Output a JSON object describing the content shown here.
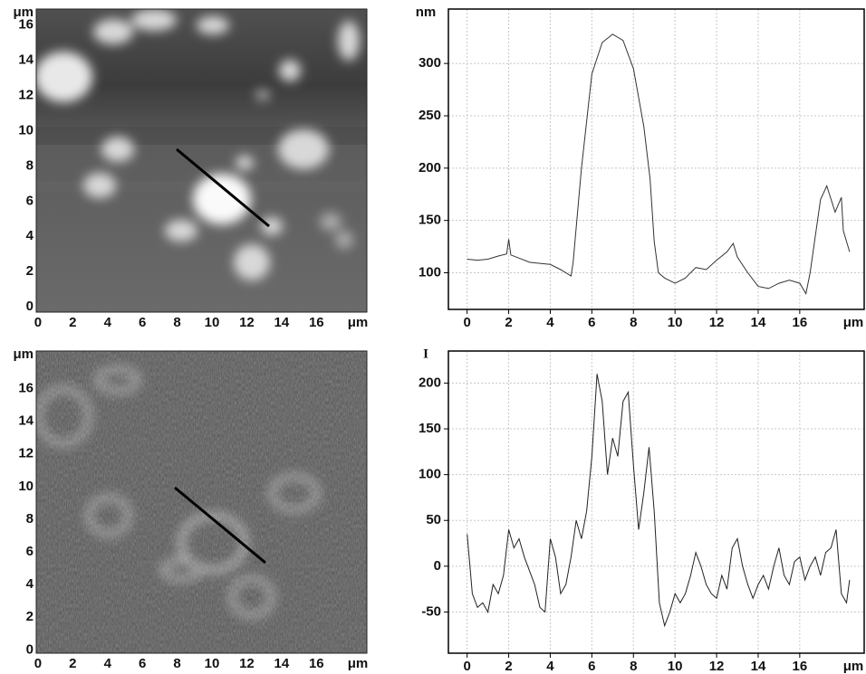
{
  "chart_data": [
    {
      "type": "image",
      "xlim": [
        -0.1,
        18.9
      ],
      "ylim": [
        -0.3,
        16.9
      ],
      "xticks": [
        0,
        2,
        4,
        6,
        8,
        10,
        12,
        14,
        16
      ],
      "yticks": [
        0,
        2,
        4,
        6,
        8,
        10,
        12,
        14,
        16
      ],
      "x_unit": "μm",
      "y_unit": "μm"
    },
    {
      "type": "line",
      "y_label": "nm",
      "x_unit": "μm",
      "color": "#333333",
      "grid": true,
      "xlim": [
        -0.9,
        19.1
      ],
      "ylim": [
        65,
        352
      ],
      "xticks": [
        0,
        2,
        4,
        6,
        8,
        10,
        12,
        14,
        16
      ],
      "yticks": [
        100,
        150,
        200,
        250,
        300
      ],
      "x": [
        0,
        0.5,
        1,
        1.5,
        1.9,
        2,
        2.1,
        2.5,
        3,
        3.5,
        4,
        4.5,
        5,
        5.1,
        5.5,
        6,
        6.5,
        7,
        7.5,
        8,
        8.5,
        8.8,
        9,
        9.2,
        9.5,
        10,
        10.5,
        11,
        11.5,
        12,
        12.5,
        12.8,
        13,
        13.5,
        14,
        14.5,
        15,
        15.5,
        16,
        16.3,
        16.5,
        17,
        17.3,
        17.7,
        18,
        18.1,
        18.4
      ],
      "values": [
        113,
        112,
        113,
        116,
        118,
        132,
        117,
        114,
        110,
        109,
        108,
        103,
        97,
        110,
        200,
        290,
        320,
        328,
        322,
        295,
        240,
        190,
        130,
        100,
        95,
        90,
        95,
        105,
        103,
        112,
        120,
        128,
        115,
        100,
        87,
        85,
        90,
        93,
        90,
        80,
        100,
        170,
        183,
        158,
        172,
        140,
        120
      ]
    },
    {
      "type": "image",
      "xlim": [
        -0.1,
        18.9
      ],
      "ylim": [
        -0.2,
        18.3
      ],
      "xticks": [
        0,
        2,
        4,
        6,
        8,
        10,
        12,
        14,
        16
      ],
      "yticks": [
        0,
        2,
        4,
        6,
        8,
        10,
        12,
        14,
        16
      ],
      "x_unit": "μm",
      "y_unit": "μm"
    },
    {
      "type": "line",
      "y_label": "I",
      "x_unit": "μm",
      "color": "#222222",
      "grid": true,
      "xlim": [
        -0.9,
        19.1
      ],
      "ylim": [
        -95,
        235
      ],
      "xticks": [
        0,
        2,
        4,
        6,
        8,
        10,
        12,
        14,
        16
      ],
      "yticks": [
        -50,
        0,
        50,
        100,
        150,
        200
      ],
      "x": [
        0,
        0.25,
        0.5,
        0.75,
        1,
        1.25,
        1.5,
        1.75,
        2,
        2.25,
        2.5,
        2.75,
        3,
        3.25,
        3.5,
        3.75,
        4,
        4.25,
        4.5,
        4.75,
        5,
        5.25,
        5.5,
        5.75,
        6,
        6.25,
        6.5,
        6.75,
        7,
        7.25,
        7.5,
        7.75,
        8,
        8.25,
        8.5,
        8.75,
        9,
        9.25,
        9.5,
        9.75,
        10,
        10.25,
        10.5,
        10.75,
        11,
        11.25,
        11.5,
        11.75,
        12,
        12.25,
        12.5,
        12.75,
        13,
        13.25,
        13.5,
        13.75,
        14,
        14.25,
        14.5,
        14.75,
        15,
        15.25,
        15.5,
        15.75,
        16,
        16.25,
        16.5,
        16.75,
        17,
        17.25,
        17.5,
        17.75,
        18,
        18.25,
        18.4
      ],
      "values": [
        35,
        -30,
        -45,
        -40,
        -50,
        -20,
        -30,
        -10,
        40,
        20,
        30,
        10,
        -5,
        -20,
        -45,
        -50,
        30,
        10,
        -30,
        -20,
        10,
        50,
        30,
        60,
        120,
        210,
        180,
        100,
        140,
        120,
        180,
        190,
        110,
        40,
        80,
        130,
        60,
        -40,
        -65,
        -50,
        -30,
        -40,
        -30,
        -10,
        15,
        0,
        -20,
        -30,
        -35,
        -10,
        -25,
        20,
        30,
        0,
        -20,
        -35,
        -20,
        -10,
        -25,
        0,
        20,
        -10,
        -20,
        5,
        10,
        -15,
        0,
        10,
        -10,
        15,
        20,
        40,
        -30,
        -40,
        -15
      ]
    }
  ]
}
